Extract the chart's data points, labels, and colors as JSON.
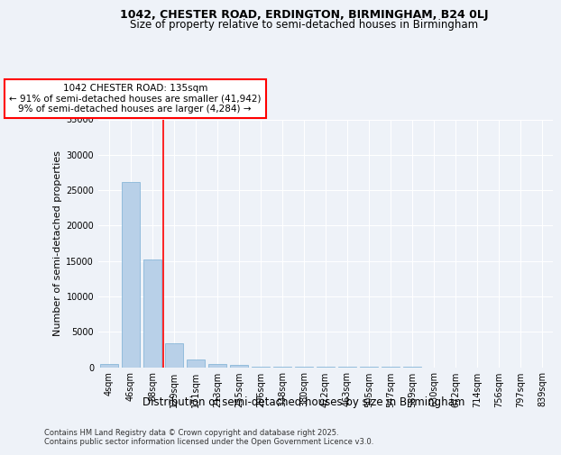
{
  "title_line1": "1042, CHESTER ROAD, ERDINGTON, BIRMINGHAM, B24 0LJ",
  "title_line2": "Size of property relative to semi-detached houses in Birmingham",
  "xlabel": "Distribution of semi-detached houses by size in Birmingham",
  "ylabel": "Number of semi-detached properties",
  "categories": [
    "4sqm",
    "46sqm",
    "88sqm",
    "129sqm",
    "171sqm",
    "213sqm",
    "255sqm",
    "296sqm",
    "338sqm",
    "380sqm",
    "422sqm",
    "463sqm",
    "505sqm",
    "547sqm",
    "589sqm",
    "630sqm",
    "672sqm",
    "714sqm",
    "756sqm",
    "797sqm",
    "839sqm"
  ],
  "values": [
    420,
    26100,
    15200,
    3400,
    1100,
    480,
    310,
    90,
    40,
    15,
    8,
    4,
    2,
    1,
    1,
    0,
    0,
    0,
    0,
    0,
    0
  ],
  "bar_color": "#b8d0e8",
  "bar_edge_color": "#7aafd4",
  "red_line_color": "red",
  "annotation_text": "1042 CHESTER ROAD: 135sqm\n← 91% of semi-detached houses are smaller (41,942)\n9% of semi-detached houses are larger (4,284) →",
  "annotation_box_facecolor": "white",
  "annotation_box_edgecolor": "red",
  "ylim": [
    0,
    35000
  ],
  "yticks": [
    0,
    5000,
    10000,
    15000,
    20000,
    25000,
    30000,
    35000
  ],
  "background_color": "#eef2f8",
  "grid_color": "white",
  "footnote": "Contains HM Land Registry data © Crown copyright and database right 2025.\nContains public sector information licensed under the Open Government Licence v3.0.",
  "title_fontsize": 9,
  "subtitle_fontsize": 8.5,
  "ylabel_fontsize": 8,
  "xlabel_fontsize": 8.5,
  "tick_fontsize": 7,
  "annotation_fontsize": 7.5,
  "footnote_fontsize": 6
}
